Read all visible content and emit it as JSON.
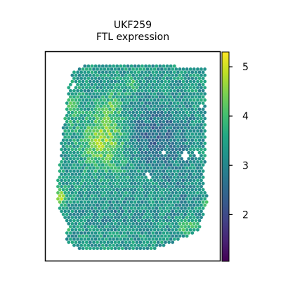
{
  "chart_data": {
    "type": "heatmap",
    "subtype": "spatial-transcriptomics-spot-plot",
    "title_lines": [
      "UKF259",
      "FTL expression"
    ],
    "xlabel": "",
    "ylabel": "",
    "colormap": "viridis",
    "colorbar": {
      "range": [
        1.05,
        5.3
      ],
      "ticks": [
        2,
        3,
        4,
        5
      ],
      "tick_labels": [
        "2",
        "3",
        "4",
        "5"
      ],
      "placement": "right"
    },
    "value_summary": {
      "typical": 3.3,
      "high_region": "upper-left cluster, values about 4.2-4.9",
      "low_region": "center-right band, values about 2.3-2.9",
      "edge_hotspots": "left edge and lower-right edge near 4.5-5"
    },
    "axes_visible": false,
    "grid": false,
    "legend": "none"
  }
}
